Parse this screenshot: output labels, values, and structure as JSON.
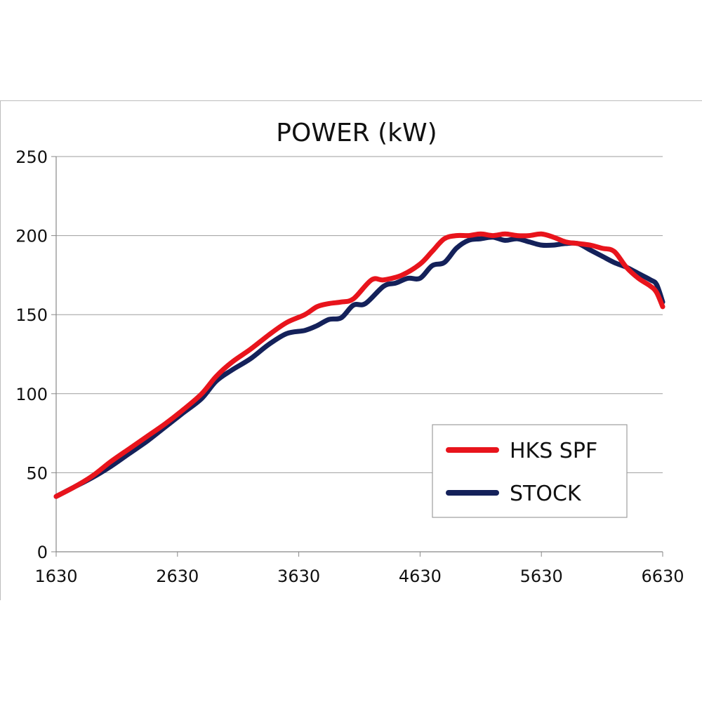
{
  "chart_data": {
    "type": "line",
    "title": "POWER (kW)",
    "xlabel": "",
    "ylabel": "",
    "xlim": [
      1630,
      6630
    ],
    "ylim": [
      0,
      250
    ],
    "x_ticks": [
      1630,
      2630,
      3630,
      4630,
      5630,
      6630
    ],
    "y_ticks": [
      0,
      50,
      100,
      150,
      200,
      250
    ],
    "grid": "horizontal",
    "legend_position": "bottom-right",
    "series": [
      {
        "name": "HKS SPF",
        "color": "#e8141c",
        "points": [
          [
            1630,
            35
          ],
          [
            1780,
            41
          ],
          [
            1930,
            48
          ],
          [
            2080,
            57
          ],
          [
            2230,
            65
          ],
          [
            2380,
            73
          ],
          [
            2530,
            81
          ],
          [
            2680,
            90
          ],
          [
            2830,
            100
          ],
          [
            2950,
            111
          ],
          [
            3080,
            120
          ],
          [
            3230,
            128
          ],
          [
            3380,
            137
          ],
          [
            3530,
            145
          ],
          [
            3680,
            150
          ],
          [
            3780,
            155
          ],
          [
            3880,
            157
          ],
          [
            3980,
            158
          ],
          [
            4080,
            160
          ],
          [
            4230,
            172
          ],
          [
            4330,
            172
          ],
          [
            4480,
            175
          ],
          [
            4630,
            182
          ],
          [
            4730,
            190
          ],
          [
            4830,
            198
          ],
          [
            4930,
            200
          ],
          [
            5030,
            200
          ],
          [
            5130,
            201
          ],
          [
            5230,
            200
          ],
          [
            5330,
            201
          ],
          [
            5430,
            200
          ],
          [
            5530,
            200
          ],
          [
            5630,
            201
          ],
          [
            5730,
            199
          ],
          [
            5830,
            196
          ],
          [
            5930,
            195
          ],
          [
            6030,
            194
          ],
          [
            6130,
            192
          ],
          [
            6230,
            190
          ],
          [
            6330,
            180
          ],
          [
            6430,
            173
          ],
          [
            6530,
            168
          ],
          [
            6580,
            164
          ],
          [
            6630,
            155
          ]
        ]
      },
      {
        "name": "STOCK",
        "color": "#14215a",
        "points": [
          [
            1630,
            35
          ],
          [
            1780,
            41
          ],
          [
            1930,
            47
          ],
          [
            2080,
            54
          ],
          [
            2230,
            62
          ],
          [
            2380,
            70
          ],
          [
            2530,
            79
          ],
          [
            2680,
            88
          ],
          [
            2830,
            97
          ],
          [
            2950,
            108
          ],
          [
            3080,
            115
          ],
          [
            3230,
            122
          ],
          [
            3380,
            131
          ],
          [
            3530,
            138
          ],
          [
            3680,
            140
          ],
          [
            3780,
            143
          ],
          [
            3880,
            147
          ],
          [
            3980,
            148
          ],
          [
            4080,
            156
          ],
          [
            4180,
            157
          ],
          [
            4330,
            168
          ],
          [
            4430,
            170
          ],
          [
            4530,
            173
          ],
          [
            4630,
            173
          ],
          [
            4730,
            181
          ],
          [
            4830,
            183
          ],
          [
            4930,
            192
          ],
          [
            5030,
            197
          ],
          [
            5130,
            198
          ],
          [
            5230,
            199
          ],
          [
            5330,
            197
          ],
          [
            5430,
            198
          ],
          [
            5530,
            196
          ],
          [
            5630,
            194
          ],
          [
            5730,
            194
          ],
          [
            5830,
            195
          ],
          [
            5930,
            195
          ],
          [
            6030,
            191
          ],
          [
            6130,
            187
          ],
          [
            6230,
            183
          ],
          [
            6330,
            180
          ],
          [
            6430,
            176
          ],
          [
            6530,
            172
          ],
          [
            6580,
            169
          ],
          [
            6630,
            158
          ]
        ]
      }
    ]
  }
}
